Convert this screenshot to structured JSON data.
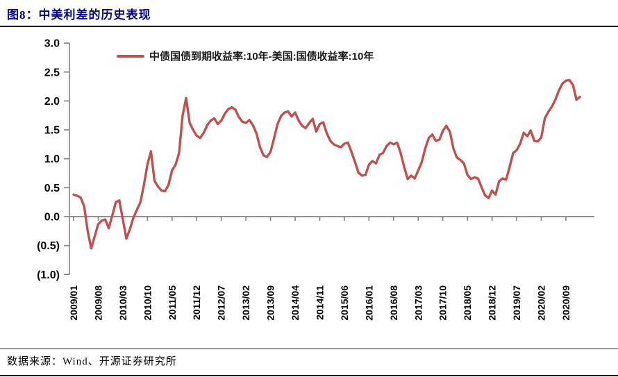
{
  "header": {
    "title": "图8：中美利差的历史表现"
  },
  "legend": {
    "label": "中债国债到期收益率:10年-美国:国债收益率:10年"
  },
  "footer": {
    "source": "数据来源：Wind、开源证券研究所"
  },
  "colors": {
    "title": "#00008B",
    "line": "#C0504D",
    "axis": "#808080",
    "text": "#000000"
  },
  "chart_data": {
    "type": "line",
    "title": "",
    "xlabel": "",
    "ylabel": "",
    "ylim": [
      -1.0,
      3.0
    ],
    "grid": false,
    "legend_position": "top",
    "x_start_month": "2009/01",
    "x_end_month": "2021/01",
    "x_tick_interval_months": 7,
    "x_tick_labels": [
      "2009/01",
      "2009/08",
      "2010/03",
      "2010/10",
      "2011/05",
      "2011/12",
      "2012/07",
      "2013/02",
      "2013/09",
      "2014/04",
      "2014/11",
      "2015/06",
      "2016/01",
      "2016/08",
      "2017/03",
      "2017/10",
      "2018/05",
      "2018/12",
      "2019/07",
      "2020/02",
      "2020/09"
    ],
    "y_ticks": [
      3.0,
      2.5,
      2.0,
      1.5,
      1.0,
      0.5,
      0.0,
      -0.5,
      -1.0
    ],
    "y_tick_labels": [
      "3.0",
      "2.5",
      "2.0",
      "1.5",
      "1.0",
      "0.5",
      "0.0",
      "(0.5)",
      "(1.0)"
    ],
    "series": [
      {
        "name": "中债国债到期收益率:10年-美国:国债收益率:10年",
        "color": "#C0504D",
        "monthly_values": [
          0.38,
          0.36,
          0.33,
          0.18,
          -0.25,
          -0.55,
          -0.34,
          -0.13,
          -0.07,
          -0.05,
          -0.2,
          0.02,
          0.25,
          0.28,
          -0.05,
          -0.38,
          -0.22,
          -0.02,
          0.12,
          0.25,
          0.55,
          0.9,
          1.13,
          0.62,
          0.52,
          0.45,
          0.44,
          0.55,
          0.8,
          0.9,
          1.1,
          1.75,
          2.05,
          1.62,
          1.5,
          1.4,
          1.36,
          1.45,
          1.58,
          1.66,
          1.7,
          1.6,
          1.66,
          1.78,
          1.86,
          1.89,
          1.85,
          1.72,
          1.64,
          1.62,
          1.67,
          1.58,
          1.44,
          1.2,
          1.06,
          1.03,
          1.12,
          1.35,
          1.6,
          1.74,
          1.8,
          1.82,
          1.73,
          1.8,
          1.66,
          1.57,
          1.53,
          1.62,
          1.69,
          1.47,
          1.6,
          1.63,
          1.44,
          1.31,
          1.25,
          1.22,
          1.2,
          1.26,
          1.28,
          1.12,
          0.95,
          0.76,
          0.71,
          0.72,
          0.9,
          0.96,
          0.92,
          1.07,
          1.1,
          1.22,
          1.28,
          1.25,
          1.28,
          1.1,
          0.86,
          0.65,
          0.71,
          0.66,
          0.8,
          0.94,
          1.18,
          1.36,
          1.42,
          1.31,
          1.33,
          1.48,
          1.57,
          1.47,
          1.18,
          1.02,
          0.98,
          0.92,
          0.72,
          0.65,
          0.68,
          0.66,
          0.51,
          0.37,
          0.32,
          0.45,
          0.38,
          0.61,
          0.66,
          0.64,
          0.86,
          1.1,
          1.15,
          1.26,
          1.45,
          1.39,
          1.49,
          1.31,
          1.3,
          1.37,
          1.7,
          1.81,
          1.9,
          2.02,
          2.18,
          2.3,
          2.35,
          2.36,
          2.28,
          2.02,
          2.07
        ]
      }
    ]
  }
}
